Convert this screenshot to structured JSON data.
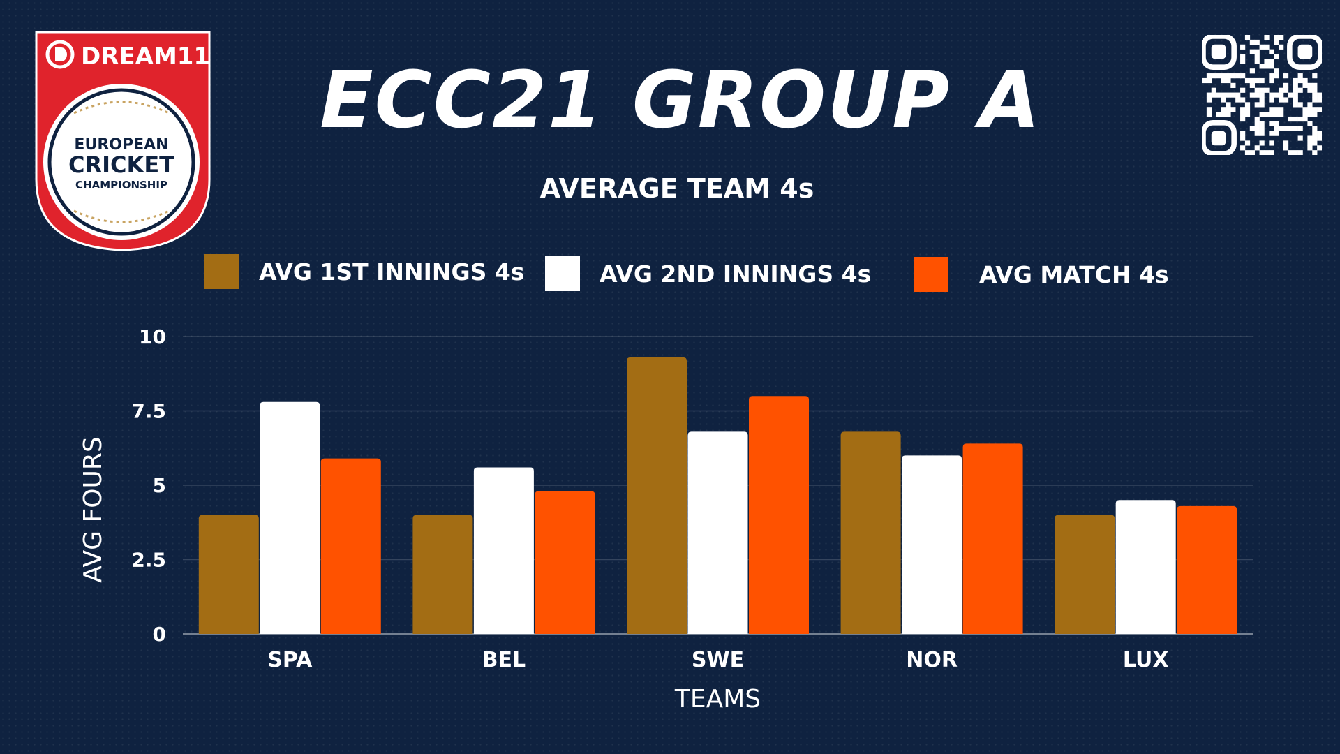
{
  "logo": {
    "brand": "DREAM11",
    "line1": "EUROPEAN",
    "line2": "CRICKET",
    "line3": "CHAMPIONSHIP"
  },
  "header": {
    "title": "ECC21 GROUP A"
  },
  "colors": {
    "background": "#0f2240",
    "series_1": "#a36d14",
    "series_2": "#ffffff",
    "series_3": "#ff5200",
    "logo_red": "#e0232c"
  },
  "chart_data": {
    "type": "bar",
    "title": "AVERAGE TEAM 4s",
    "xlabel": "TEAMS",
    "ylabel": "AVG FOURS",
    "categories": [
      "SPA",
      "BEL",
      "SWE",
      "NOR",
      "LUX"
    ],
    "series": [
      {
        "name": "AVG 1ST INNINGS 4s",
        "color": "#a36d14",
        "values": [
          4.0,
          4.0,
          9.3,
          6.8,
          4.0
        ]
      },
      {
        "name": "AVG 2ND INNINGS 4s",
        "color": "#ffffff",
        "values": [
          7.8,
          5.6,
          6.8,
          6.0,
          4.5
        ]
      },
      {
        "name": "AVG MATCH 4s",
        "color": "#ff5200",
        "values": [
          5.9,
          4.8,
          8.0,
          6.4,
          4.3
        ]
      }
    ],
    "yticks": [
      "0",
      "2.5",
      "5",
      "7.5",
      "10"
    ],
    "ylim": [
      0,
      10
    ],
    "grid": true,
    "legend_position": "top"
  }
}
